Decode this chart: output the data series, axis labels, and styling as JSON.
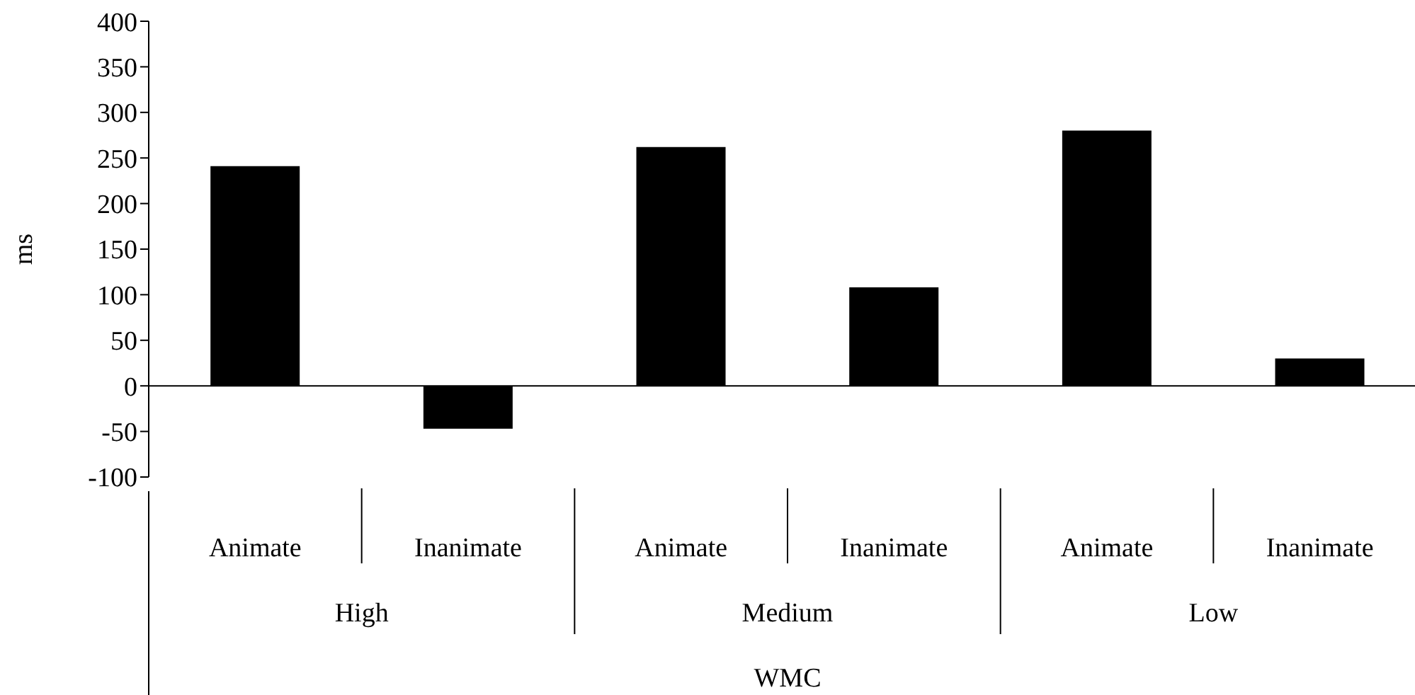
{
  "chart_data": {
    "type": "bar",
    "ylabel": "ms",
    "xlabel": "WMC",
    "categories": [
      "Animate",
      "Inanimate",
      "Animate",
      "Inanimate",
      "Animate",
      "Inanimate"
    ],
    "annotations": [
      "High",
      "Medium",
      "Low"
    ],
    "values": [
      241,
      -47,
      262,
      108,
      280,
      30
    ],
    "color": "#000000",
    "ylim": [
      -100,
      400
    ],
    "yticks": [
      -100,
      -50,
      0,
      50,
      100,
      150,
      200,
      250,
      300,
      350,
      400
    ],
    "ref_lines": [
      {
        "axis": "y",
        "value": 0,
        "color": "#000000"
      }
    ],
    "grid": false,
    "legend": false
  }
}
